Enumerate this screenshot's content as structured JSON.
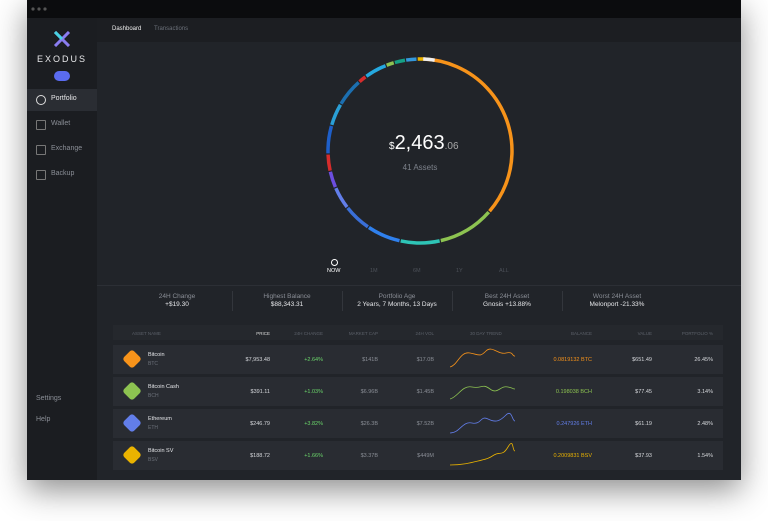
{
  "app": {
    "brand": "EXODUS",
    "tabs": [
      "Dashboard",
      "Transactions"
    ],
    "sidebar": [
      "Portfolio",
      "Wallet",
      "Exchange",
      "Backup"
    ],
    "sidebar_bottom": [
      "Settings",
      "Help"
    ]
  },
  "portfolio": {
    "currency": "$",
    "whole": "2,463",
    "cents": ".06",
    "assets": "41 Assets",
    "ranges": [
      "NOW",
      "1M",
      "6M",
      "1Y",
      "ALL"
    ]
  },
  "stats": [
    {
      "label": "24H Change",
      "value": "+$19.30"
    },
    {
      "label": "Highest Balance",
      "value": "$88,343.31"
    },
    {
      "label": "Portfolio Age",
      "value": "2 Years, 7 Months, 13 Days"
    },
    {
      "label": "Best 24H Asset",
      "value": "Gnosis +13.88%"
    },
    {
      "label": "Worst 24H Asset",
      "value": "Melonport -21.33%"
    }
  ],
  "table": {
    "headers": [
      "ASSET NAME",
      "PRICE",
      "24H CHANGE",
      "MARKET CAP",
      "24H VOL",
      "30 DAY TREND",
      "BALANCE",
      "VALUE",
      "PORTFOLIO %"
    ],
    "rows": [
      {
        "name": "Bitcoin",
        "ticker": "BTC",
        "price": "$7,953.48",
        "change": "+2.64%",
        "mcap": "$141B",
        "vol": "$17.0B",
        "balance": "0.0819132 BTC",
        "value": "$651.49",
        "share": "26.45%"
      },
      {
        "name": "Bitcoin Cash",
        "ticker": "BCH",
        "price": "$391.11",
        "change": "+1.03%",
        "mcap": "$6.96B",
        "vol": "$1.45B",
        "balance": "0.198038 BCH",
        "value": "$77.45",
        "share": "3.14%"
      },
      {
        "name": "Ethereum",
        "ticker": "ETH",
        "price": "$246.79",
        "change": "+3.82%",
        "mcap": "$26.3B",
        "vol": "$7.52B",
        "balance": "0.247926 ETH",
        "value": "$61.19",
        "share": "2.48%"
      },
      {
        "name": "Bitcoin SV",
        "ticker": "BSV",
        "price": "$188.72",
        "change": "+1.66%",
        "mcap": "$3.37B",
        "vol": "$449M",
        "balance": "0.2009831 BSV",
        "value": "$37.93",
        "share": "1.54%"
      }
    ]
  }
}
